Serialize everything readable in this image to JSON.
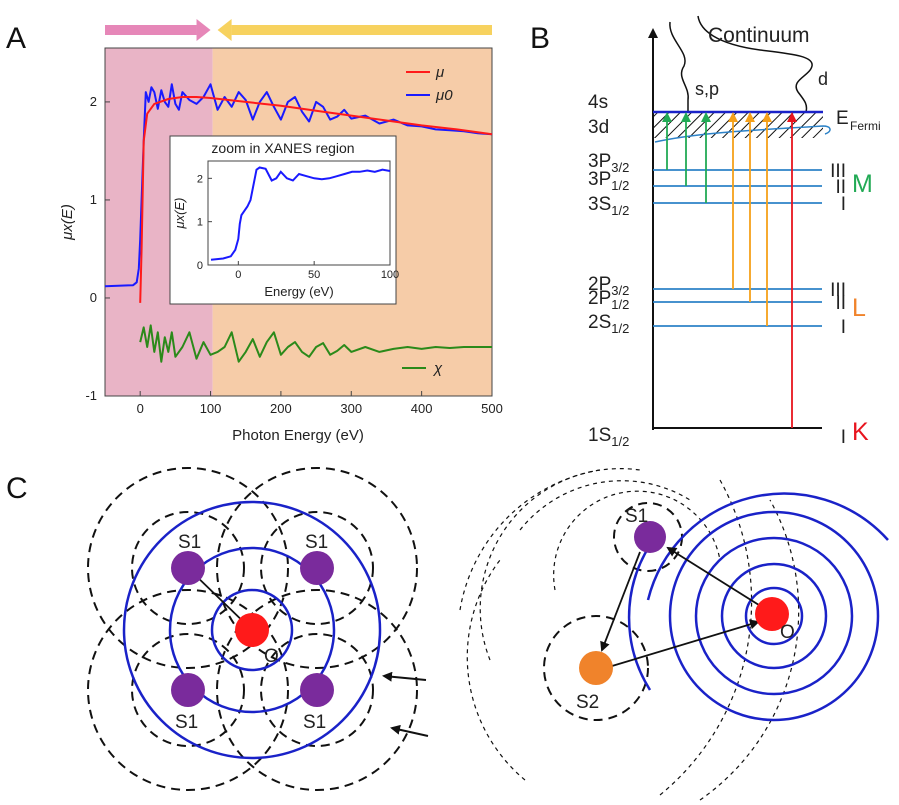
{
  "panel_labels": {
    "a": "A",
    "b": "B",
    "c": "C"
  },
  "chart_data": [
    {
      "type": "line",
      "panel": "A",
      "xlabel": "Photon Energy (eV)",
      "ylabel": "μx(E)",
      "xlim": [
        -50,
        500
      ],
      "ylim": [
        -1,
        2.55
      ],
      "xticks": [
        0,
        100,
        200,
        300,
        400,
        500
      ],
      "yticks": [
        -1,
        0,
        1,
        2
      ],
      "xtick_labels": [
        "0",
        "100",
        "200",
        "300",
        "400",
        "500"
      ],
      "ytick_labels": [
        "-1",
        "0",
        "1",
        "2"
      ],
      "regions": [
        {
          "from": -50,
          "to": 103,
          "color": "#e9b4c6"
        },
        {
          "from": 103,
          "to": 500,
          "color": "#f6cca8"
        }
      ],
      "arrows": [
        {
          "from": -50,
          "to": 100,
          "color": "#e687b8"
        },
        {
          "from": 500,
          "to": 110,
          "color": "#f7d25f"
        }
      ],
      "legend": {
        "placement": "top-right",
        "entries": [
          "μ",
          "μ0",
          "χ"
        ]
      },
      "series": [
        {
          "name": "μ",
          "color": "#ff1a1a",
          "x": [
            0,
            2,
            5,
            10,
            20,
            40,
            60,
            80,
            100,
            150,
            200,
            250,
            300,
            350,
            400,
            450,
            500
          ],
          "y": [
            -0.05,
            0.5,
            1.6,
            1.88,
            1.98,
            2.03,
            2.05,
            2.05,
            2.04,
            2.0,
            1.96,
            1.91,
            1.86,
            1.81,
            1.76,
            1.72,
            1.67
          ]
        },
        {
          "name": "μ0",
          "color": "#1a1aff",
          "x": [
            -50,
            -10,
            -5,
            -2,
            0,
            2,
            5,
            8,
            12,
            16,
            20,
            25,
            30,
            35,
            40,
            45,
            50,
            55,
            60,
            70,
            80,
            90,
            100,
            110,
            120,
            130,
            140,
            150,
            160,
            170,
            180,
            190,
            200,
            210,
            220,
            230,
            240,
            250,
            260,
            270,
            280,
            290,
            300,
            320,
            340,
            360,
            380,
            400,
            420,
            440,
            460,
            480,
            500
          ],
          "y": [
            0.12,
            0.13,
            0.16,
            0.3,
            0.6,
            1.0,
            1.6,
            2.1,
            2.0,
            2.15,
            2.1,
            1.93,
            2.12,
            2.0,
            1.95,
            2.18,
            1.98,
            1.92,
            2.1,
            2.02,
            1.98,
            2.05,
            2.18,
            1.92,
            2.05,
            1.95,
            2.1,
            2.02,
            1.82,
            2.0,
            2.1,
            1.95,
            1.82,
            2.0,
            2.05,
            1.9,
            1.8,
            2.0,
            1.95,
            1.82,
            1.85,
            1.92,
            1.83,
            1.86,
            1.78,
            1.82,
            1.76,
            1.75,
            1.72,
            1.71,
            1.7,
            1.68,
            1.67
          ]
        },
        {
          "name": "χ",
          "color": "#2b8a1a",
          "x": [
            0,
            5,
            10,
            15,
            20,
            25,
            30,
            35,
            40,
            45,
            50,
            60,
            70,
            80,
            90,
            100,
            110,
            120,
            130,
            140,
            150,
            160,
            170,
            180,
            190,
            200,
            210,
            220,
            230,
            240,
            250,
            260,
            270,
            280,
            290,
            300,
            320,
            340,
            360,
            380,
            400,
            420,
            440,
            460,
            480,
            500
          ],
          "y": [
            -0.45,
            -0.3,
            -0.5,
            -0.28,
            -0.55,
            -0.35,
            -0.65,
            -0.4,
            -0.55,
            -0.35,
            -0.6,
            -0.5,
            -0.35,
            -0.62,
            -0.45,
            -0.58,
            -0.55,
            -0.5,
            -0.35,
            -0.65,
            -0.55,
            -0.42,
            -0.6,
            -0.45,
            -0.35,
            -0.58,
            -0.5,
            -0.45,
            -0.55,
            -0.6,
            -0.5,
            -0.46,
            -0.58,
            -0.54,
            -0.48,
            -0.55,
            -0.5,
            -0.55,
            -0.52,
            -0.5,
            -0.52,
            -0.5,
            -0.51,
            -0.5,
            -0.5,
            -0.5
          ]
        }
      ],
      "inset": {
        "title": "zoom in XANES region",
        "xlabel": "Energy (eV)",
        "ylabel": "μx(E)",
        "xlim": [
          -20,
          100
        ],
        "ylim": [
          0,
          2.4
        ],
        "xticks": [
          0,
          50,
          100
        ],
        "yticks": [
          0,
          1,
          2
        ],
        "xtick_labels": [
          "0",
          "50",
          "100"
        ],
        "ytick_labels": [
          "0",
          "1",
          "2"
        ],
        "series": [
          {
            "color": "#1a1aff",
            "x": [
              -18,
              -10,
              -5,
              -2,
              0,
              1,
              2,
              4,
              6,
              8,
              10,
              12,
              14,
              18,
              22,
              25,
              28,
              32,
              36,
              40,
              45,
              50,
              55,
              60,
              65,
              70,
              75,
              80,
              85,
              90,
              95,
              100
            ],
            "y": [
              0.12,
              0.15,
              0.2,
              0.35,
              0.6,
              0.95,
              1.15,
              1.25,
              1.35,
              1.5,
              1.85,
              2.2,
              2.25,
              2.22,
              1.95,
              2.0,
              2.15,
              2.0,
              1.95,
              2.1,
              2.05,
              2.0,
              1.98,
              2.0,
              2.05,
              2.1,
              2.15,
              2.15,
              2.18,
              2.15,
              2.2,
              2.17
            ]
          }
        ]
      }
    },
    {
      "type": "diagram",
      "panel": "B",
      "continuum_label": "Continuum",
      "band_labels": {
        "sp": "s,p",
        "d": "d",
        "fermi_main": "E",
        "fermi_sub": "Fermi"
      },
      "levels": [
        {
          "main": "4s",
          "sub": ""
        },
        {
          "main": "3d",
          "sub": ""
        },
        {
          "main": "3P",
          "sub": "3/2"
        },
        {
          "main": "3P",
          "sub": "1/2"
        },
        {
          "main": "3S",
          "sub": "1/2"
        },
        {
          "main": "2P",
          "sub": "3/2"
        },
        {
          "main": "2P",
          "sub": "1/2"
        },
        {
          "main": "2S",
          "sub": "1/2"
        },
        {
          "main": "1S",
          "sub": "1/2"
        }
      ],
      "edges": [
        {
          "name": "M",
          "color": "#22aa55",
          "subshells": [
            "III",
            "II",
            "I"
          ]
        },
        {
          "name": "L",
          "color": "#f0832b",
          "subshells": [
            "III",
            "II",
            "I"
          ]
        },
        {
          "name": "K",
          "color": "#e8141e",
          "subshells": [
            "I"
          ]
        }
      ],
      "level_color": "#2d82c7",
      "arrow_colors": {
        "M": "#22aa55",
        "L": "#f5a11a",
        "K": "#e8141e"
      }
    },
    {
      "type": "diagram",
      "panel": "C",
      "left": {
        "center_label": "O",
        "neighbor_labels": [
          "S1",
          "S1",
          "S1",
          "S1"
        ]
      },
      "right": {
        "center_label": "O",
        "neighbor_labels": [
          "S1",
          "S2"
        ]
      },
      "colors": {
        "absorber": "#ff1a1a",
        "s1": "#7a2b9c",
        "s2": "#f0832b",
        "wave": "#1a22c8",
        "scattered": "#222222"
      }
    }
  ]
}
